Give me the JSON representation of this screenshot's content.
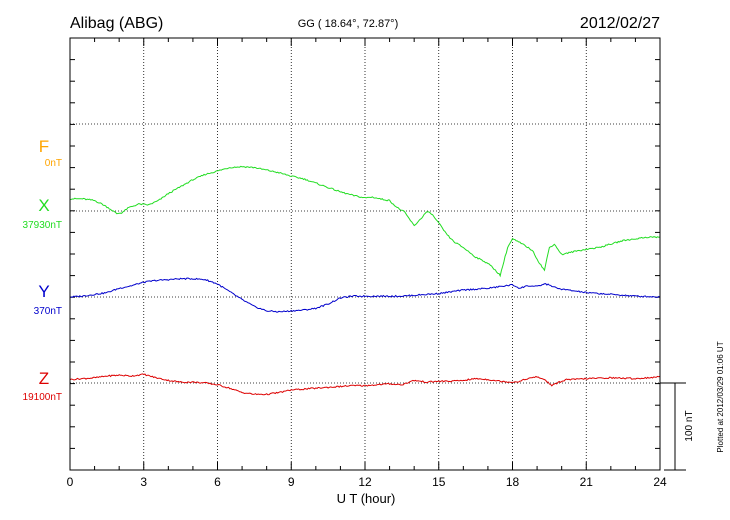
{
  "chart_data": {
    "type": "line",
    "station": "Alibag (ABG)",
    "coords": "GG ( 18.64°,  72.87°)",
    "date": "2012/02/27",
    "xlabel": "U T (hour)",
    "xlim": [
      0,
      24
    ],
    "xticks": [
      "0",
      "3",
      "6",
      "9",
      "12",
      "15",
      "18",
      "21",
      "24"
    ],
    "scale_label": "100 nT",
    "plotted_note": "Plotted at 2012/03/29 01:06 UT",
    "series": [
      {
        "name": "F",
        "baseline_label": "0nT",
        "color": "#ffa500",
        "baseline_nT": 0,
        "x": [],
        "offsets_nT": []
      },
      {
        "name": "X",
        "baseline_label": "37930nT",
        "color": "#22dd22",
        "baseline_nT": 37930,
        "x": [
          0,
          0.5,
          1,
          1.3,
          1.6,
          1.9,
          2.1,
          2.4,
          2.8,
          3.2,
          3.6,
          4.0,
          4.5,
          5.0,
          5.5,
          6.0,
          6.5,
          7.0,
          7.5,
          8.0,
          8.5,
          9.0,
          9.5,
          10.0,
          10.5,
          11.0,
          11.5,
          12.0,
          12.3,
          12.6,
          13.0,
          13.3,
          13.6,
          14.0,
          14.3,
          14.5,
          14.7,
          15.0,
          15.3,
          15.6,
          16.0,
          16.5,
          17.0,
          17.3,
          17.5,
          17.8,
          18.0,
          18.4,
          18.8,
          19.1,
          19.3,
          19.5,
          19.7,
          20.0,
          20.3,
          20.6,
          21.0,
          21.5,
          22.0,
          22.5,
          23.0,
          23.5,
          24.0
        ],
        "offsets_nT": [
          14,
          14,
          12,
          8,
          3,
          -3,
          -2,
          4,
          8,
          7,
          12,
          20,
          28,
          36,
          42,
          46,
          50,
          51,
          50,
          47,
          44,
          40,
          37,
          32,
          27,
          22,
          18,
          15,
          16,
          14,
          12,
          4,
          -1,
          -17,
          -8,
          -1,
          -3,
          -14,
          -26,
          -35,
          -42,
          -53,
          -60,
          -68,
          -74,
          -42,
          -32,
          -38,
          -45,
          -60,
          -68,
          -42,
          -38,
          -50,
          -48,
          -46,
          -44,
          -42,
          -38,
          -34,
          -32,
          -30,
          -30
        ]
      },
      {
        "name": "Y",
        "baseline_label": "370nT",
        "color": "#0000cc",
        "baseline_nT": 370,
        "x": [
          0,
          0.5,
          1,
          1.5,
          2.0,
          2.5,
          3.0,
          3.5,
          4.0,
          4.5,
          5.0,
          5.5,
          6.0,
          6.5,
          7.0,
          7.5,
          8.0,
          8.5,
          9.0,
          9.5,
          10.0,
          10.5,
          11.0,
          11.5,
          12.0,
          12.5,
          13.0,
          13.5,
          14.0,
          14.5,
          15.0,
          15.5,
          16.0,
          16.5,
          17.0,
          17.5,
          18.0,
          18.3,
          18.6,
          19.0,
          19.3,
          19.5,
          19.8,
          20.0,
          20.5,
          21.0,
          22.0,
          23.0,
          24.0
        ],
        "offsets_nT": [
          0,
          1,
          3,
          5,
          10,
          13,
          17,
          19,
          20,
          21,
          21,
          20,
          15,
          6,
          -3,
          -11,
          -16,
          -17,
          -16,
          -15,
          -13,
          -8,
          -1,
          1,
          1,
          1,
          1,
          1,
          2,
          3,
          4,
          6,
          8,
          9,
          10,
          12,
          14,
          10,
          13,
          12,
          15,
          14,
          10,
          9,
          7,
          5,
          3,
          1,
          0
        ]
      },
      {
        "name": "Z",
        "baseline_label": "19100nT",
        "color": "#dd0000",
        "baseline_nT": 19100,
        "x": [
          0,
          0.5,
          1,
          1.5,
          2.0,
          2.5,
          3.0,
          3.5,
          4.0,
          4.5,
          5.0,
          5.5,
          6.0,
          6.5,
          7.0,
          7.5,
          8.0,
          8.5,
          9.0,
          9.5,
          10.0,
          10.5,
          11.0,
          11.5,
          12.0,
          12.5,
          13.0,
          13.5,
          14.0,
          14.5,
          15.0,
          15.5,
          16.0,
          16.5,
          17.0,
          17.5,
          18.0,
          18.3,
          18.6,
          19.0,
          19.3,
          19.6,
          19.9,
          20.2,
          20.5,
          21.0,
          22.0,
          23.0,
          24.0
        ],
        "offsets_nT": [
          4,
          5,
          6,
          8,
          9,
          8,
          10,
          6,
          3,
          1,
          1,
          0,
          -2,
          -6,
          -11,
          -13,
          -13,
          -11,
          -8,
          -7,
          -6,
          -5,
          -4,
          -3,
          -3,
          -2,
          -1,
          -2,
          3,
          1,
          2,
          2,
          3,
          5,
          4,
          2,
          1,
          2,
          5,
          7,
          4,
          -3,
          1,
          4,
          4,
          5,
          6,
          5,
          7
        ]
      }
    ]
  }
}
